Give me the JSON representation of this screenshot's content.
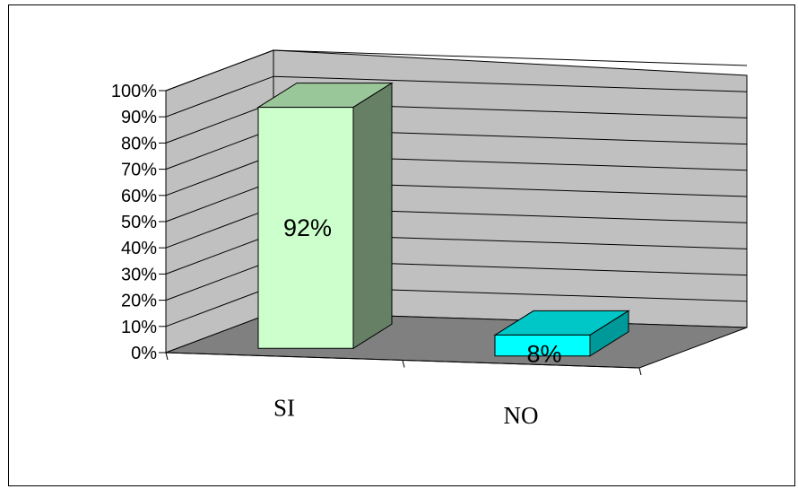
{
  "chart_data": {
    "type": "bar",
    "categories": [
      "SI",
      "NO"
    ],
    "values": [
      92,
      8
    ],
    "data_labels": [
      "92%",
      "8%"
    ],
    "ylim": [
      0,
      100
    ],
    "y_ticks": [
      0,
      10,
      20,
      30,
      40,
      50,
      60,
      70,
      80,
      90,
      100
    ],
    "y_tick_labels": [
      "0%",
      "10%",
      "20%",
      "30%",
      "40%",
      "50%",
      "60%",
      "70%",
      "80%",
      "90%",
      "100%"
    ],
    "title": "",
    "xlabel": "",
    "ylabel": "",
    "grid": true,
    "legend": "none",
    "style": "3d",
    "colors": {
      "wall": "#c0c0c0",
      "floor": "#808080",
      "si_front": "#ccffcc",
      "si_top": "#99c799",
      "si_side": "#668066",
      "no_front": "#00ffff",
      "no_top": "#00c7c7",
      "no_side": "#009999"
    }
  }
}
